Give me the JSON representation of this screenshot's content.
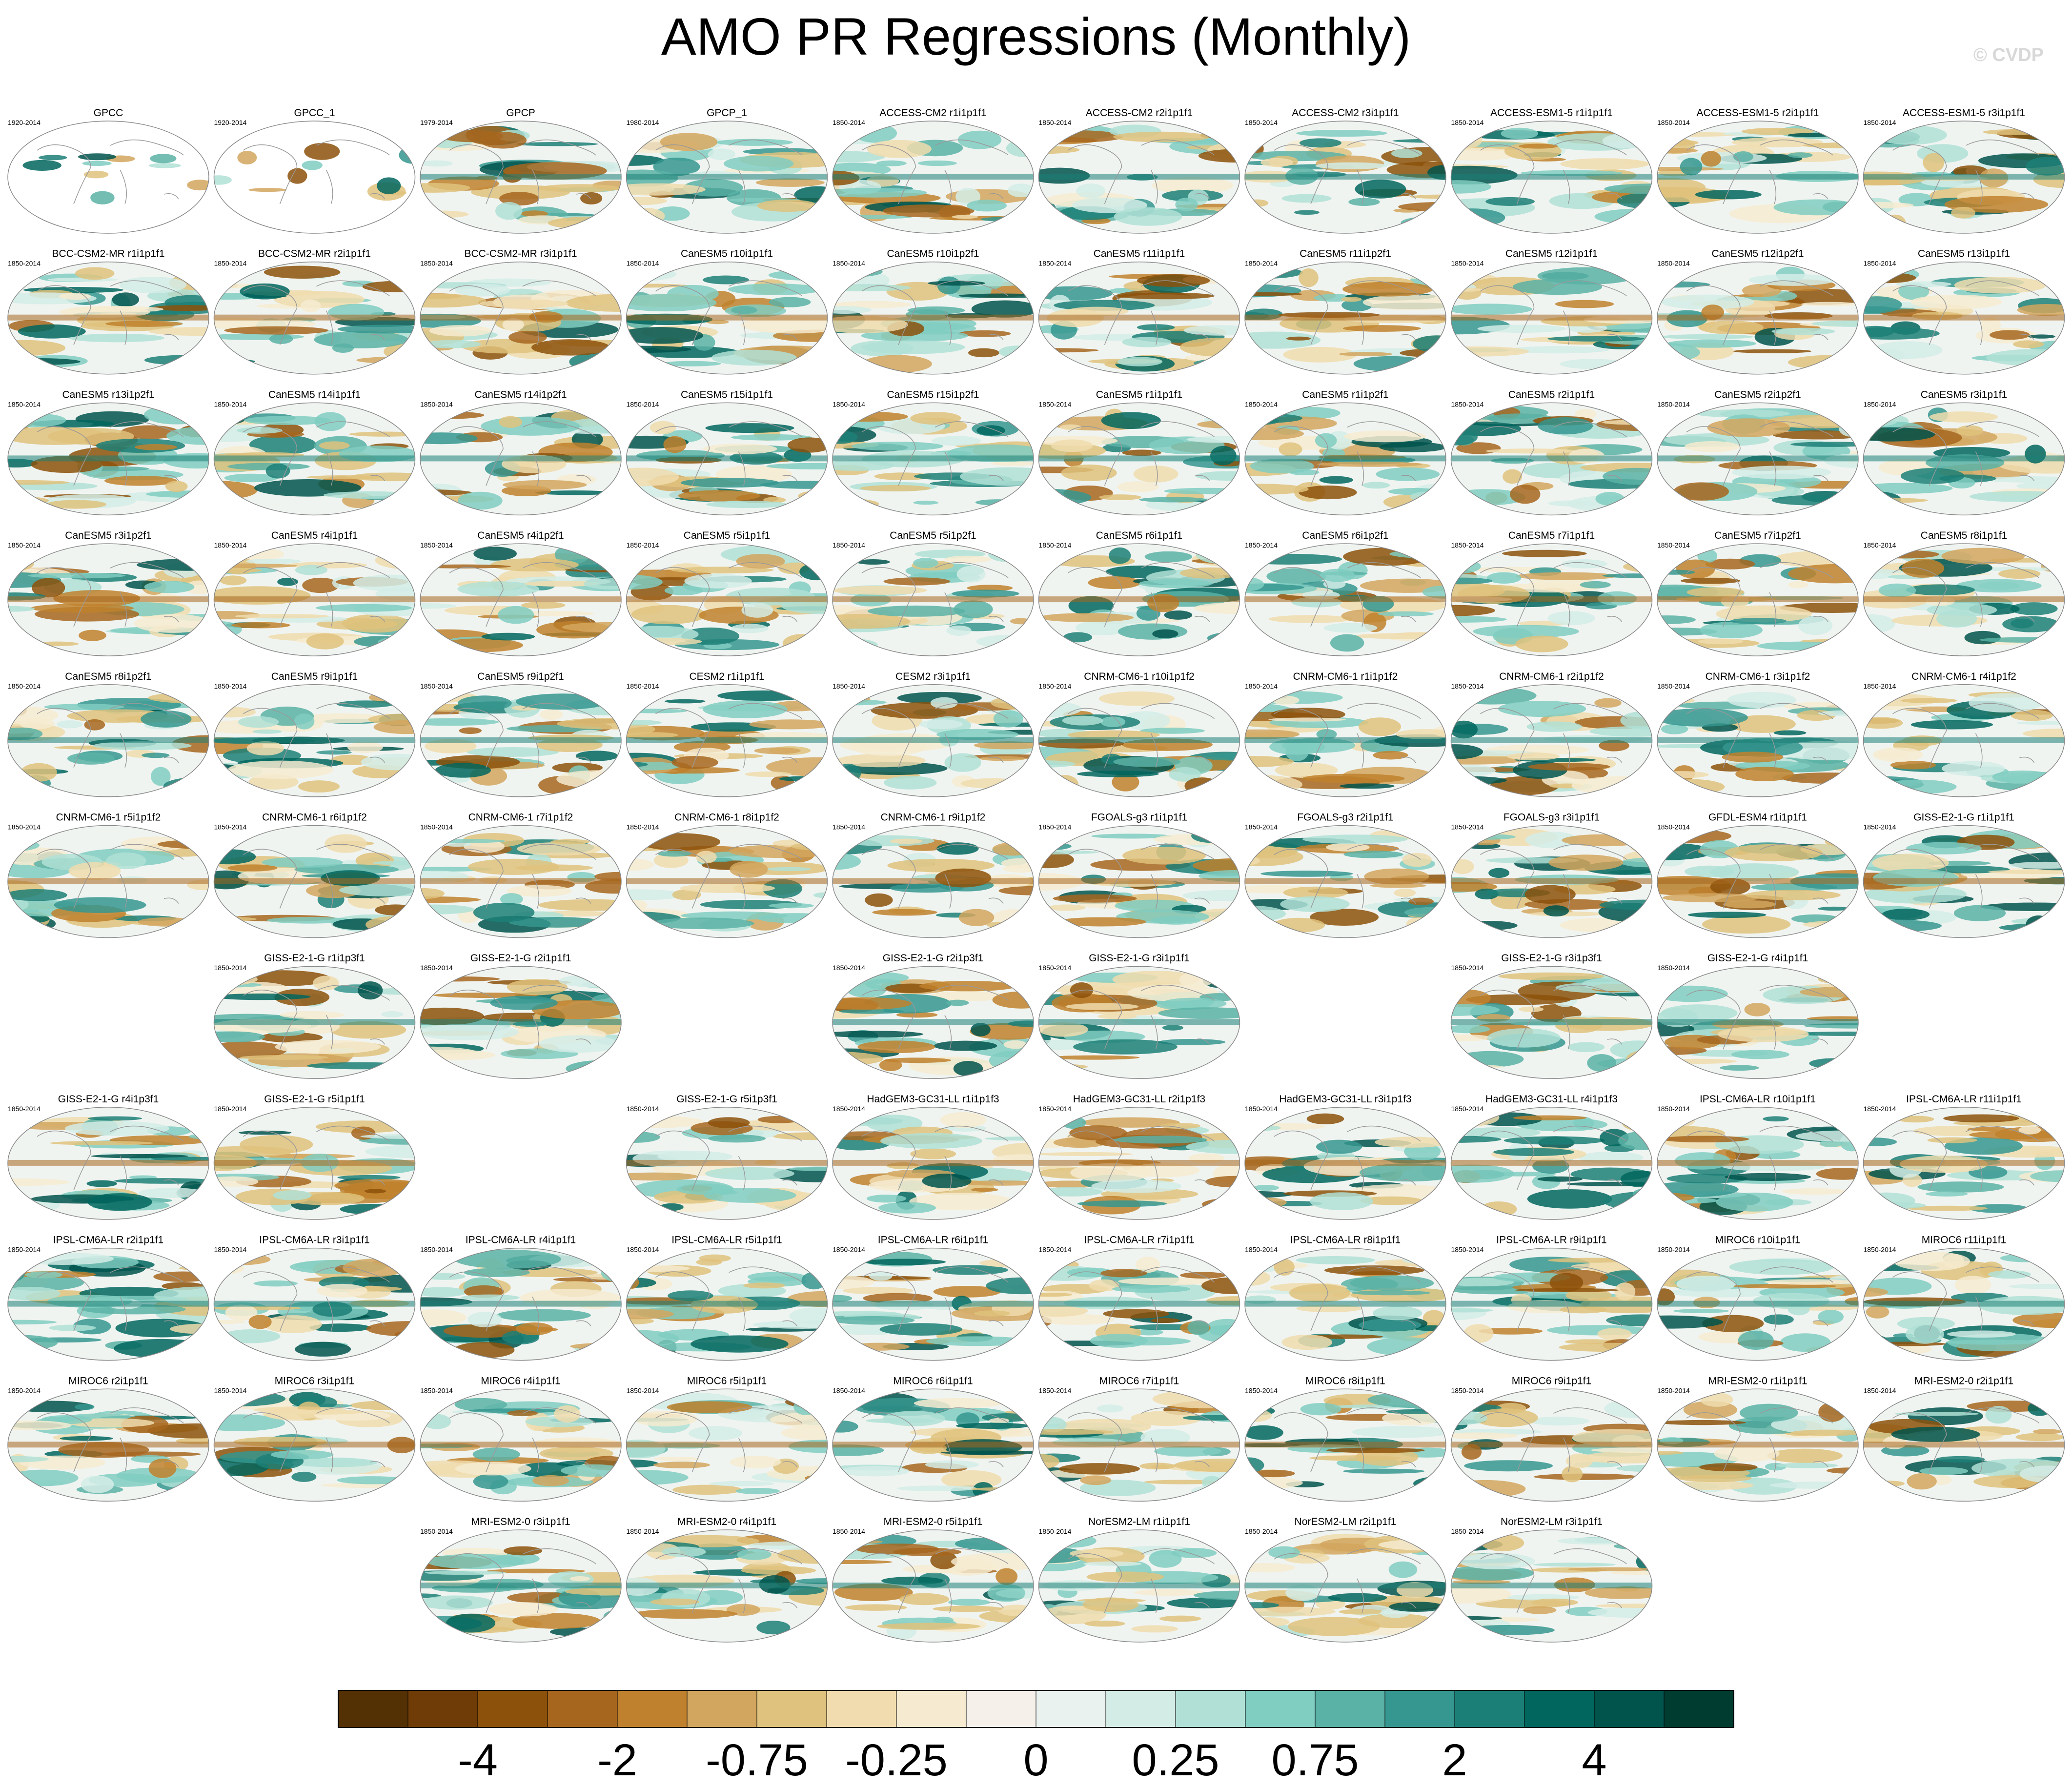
{
  "title": "AMO PR Regressions (Monthly)",
  "watermark": "© CVDP",
  "panels": [
    [
      {
        "title": "GPCC",
        "years": "1920-2014"
      },
      {
        "title": "GPCC_1",
        "years": "1920-2014"
      },
      {
        "title": "GPCP",
        "years": "1979-2014"
      },
      {
        "title": "GPCP_1",
        "years": "1980-2014"
      },
      {
        "title": "ACCESS-CM2 r1i1p1f1",
        "years": "1850-2014"
      },
      {
        "title": "ACCESS-CM2 r2i1p1f1",
        "years": "1850-2014"
      },
      {
        "title": "ACCESS-CM2 r3i1p1f1",
        "years": "1850-2014"
      },
      {
        "title": "ACCESS-ESM1-5 r1i1p1f1",
        "years": "1850-2014"
      },
      {
        "title": "ACCESS-ESM1-5 r2i1p1f1",
        "years": "1850-2014"
      },
      {
        "title": "ACCESS-ESM1-5 r3i1p1f1",
        "years": "1850-2014"
      }
    ],
    [
      {
        "title": "BCC-CSM2-MR r1i1p1f1",
        "years": "1850-2014"
      },
      {
        "title": "BCC-CSM2-MR r2i1p1f1",
        "years": "1850-2014"
      },
      {
        "title": "BCC-CSM2-MR r3i1p1f1",
        "years": "1850-2014"
      },
      {
        "title": "CanESM5 r10i1p1f1",
        "years": "1850-2014"
      },
      {
        "title": "CanESM5 r10i1p2f1",
        "years": "1850-2014"
      },
      {
        "title": "CanESM5 r11i1p1f1",
        "years": "1850-2014"
      },
      {
        "title": "CanESM5 r11i1p2f1",
        "years": "1850-2014"
      },
      {
        "title": "CanESM5 r12i1p1f1",
        "years": "1850-2014"
      },
      {
        "title": "CanESM5 r12i1p2f1",
        "years": "1850-2014"
      },
      {
        "title": "CanESM5 r13i1p1f1",
        "years": "1850-2014"
      }
    ],
    [
      {
        "title": "CanESM5 r13i1p2f1",
        "years": "1850-2014"
      },
      {
        "title": "CanESM5 r14i1p1f1",
        "years": "1850-2014"
      },
      {
        "title": "CanESM5 r14i1p2f1",
        "years": "1850-2014"
      },
      {
        "title": "CanESM5 r15i1p1f1",
        "years": "1850-2014"
      },
      {
        "title": "CanESM5 r15i1p2f1",
        "years": "1850-2014"
      },
      {
        "title": "CanESM5 r1i1p1f1",
        "years": "1850-2014"
      },
      {
        "title": "CanESM5 r1i1p2f1",
        "years": "1850-2014"
      },
      {
        "title": "CanESM5 r2i1p1f1",
        "years": "1850-2014"
      },
      {
        "title": "CanESM5 r2i1p2f1",
        "years": "1850-2014"
      },
      {
        "title": "CanESM5 r3i1p1f1",
        "years": "1850-2014"
      }
    ],
    [
      {
        "title": "CanESM5 r3i1p2f1",
        "years": "1850-2014"
      },
      {
        "title": "CanESM5 r4i1p1f1",
        "years": "1850-2014"
      },
      {
        "title": "CanESM5 r4i1p2f1",
        "years": "1850-2014"
      },
      {
        "title": "CanESM5 r5i1p1f1",
        "years": "1850-2014"
      },
      {
        "title": "CanESM5 r5i1p2f1",
        "years": "1850-2014"
      },
      {
        "title": "CanESM5 r6i1p1f1",
        "years": "1850-2014"
      },
      {
        "title": "CanESM5 r6i1p2f1",
        "years": "1850-2014"
      },
      {
        "title": "CanESM5 r7i1p1f1",
        "years": "1850-2014"
      },
      {
        "title": "CanESM5 r7i1p2f1",
        "years": "1850-2014"
      },
      {
        "title": "CanESM5 r8i1p1f1",
        "years": "1850-2014"
      }
    ],
    [
      {
        "title": "CanESM5 r8i1p2f1",
        "years": "1850-2014"
      },
      {
        "title": "CanESM5 r9i1p1f1",
        "years": "1850-2014"
      },
      {
        "title": "CanESM5 r9i1p2f1",
        "years": "1850-2014"
      },
      {
        "title": "CESM2 r1i1p1f1",
        "years": "1850-2014"
      },
      {
        "title": "CESM2 r3i1p1f1",
        "years": "1850-2014"
      },
      {
        "title": "CNRM-CM6-1 r10i1p1f2",
        "years": "1850-2014"
      },
      {
        "title": "CNRM-CM6-1 r1i1p1f2",
        "years": "1850-2014"
      },
      {
        "title": "CNRM-CM6-1 r2i1p1f2",
        "years": "1850-2014"
      },
      {
        "title": "CNRM-CM6-1 r3i1p1f2",
        "years": "1850-2014"
      },
      {
        "title": "CNRM-CM6-1 r4i1p1f2",
        "years": "1850-2014"
      }
    ],
    [
      {
        "title": "CNRM-CM6-1 r5i1p1f2",
        "years": "1850-2014"
      },
      {
        "title": "CNRM-CM6-1 r6i1p1f2",
        "years": "1850-2014"
      },
      {
        "title": "CNRM-CM6-1 r7i1p1f2",
        "years": "1850-2014"
      },
      {
        "title": "CNRM-CM6-1 r8i1p1f2",
        "years": "1850-2014"
      },
      {
        "title": "CNRM-CM6-1 r9i1p1f2",
        "years": "1850-2014"
      },
      {
        "title": "FGOALS-g3 r1i1p1f1",
        "years": "1850-2014"
      },
      {
        "title": "FGOALS-g3 r2i1p1f1",
        "years": "1850-2014"
      },
      {
        "title": "FGOALS-g3 r3i1p1f1",
        "years": "1850-2014"
      },
      {
        "title": "GFDL-ESM4 r1i1p1f1",
        "years": "1850-2014"
      },
      {
        "title": "GISS-E2-1-G r1i1p1f1",
        "years": "1850-2014"
      }
    ],
    [
      null,
      {
        "title": "GISS-E2-1-G r1i1p3f1",
        "years": "1850-2014"
      },
      {
        "title": "GISS-E2-1-G r2i1p1f1",
        "years": "1850-2014"
      },
      null,
      {
        "title": "GISS-E2-1-G r2i1p3f1",
        "years": "1850-2014"
      },
      {
        "title": "GISS-E2-1-G r3i1p1f1",
        "years": "1850-2014"
      },
      null,
      {
        "title": "GISS-E2-1-G r3i1p3f1",
        "years": "1850-2014"
      },
      {
        "title": "GISS-E2-1-G r4i1p1f1",
        "years": "1850-2014"
      },
      null
    ],
    [
      {
        "title": "GISS-E2-1-G r4i1p3f1",
        "years": "1850-2014"
      },
      {
        "title": "GISS-E2-1-G r5i1p1f1",
        "years": "1850-2014"
      },
      null,
      {
        "title": "GISS-E2-1-G r5i1p3f1",
        "years": "1850-2014"
      },
      {
        "title": "HadGEM3-GC31-LL r1i1p1f3",
        "years": "1850-2014"
      },
      {
        "title": "HadGEM3-GC31-LL r2i1p1f3",
        "years": "1850-2014"
      },
      {
        "title": "HadGEM3-GC31-LL r3i1p1f3",
        "years": "1850-2014"
      },
      {
        "title": "HadGEM3-GC31-LL r4i1p1f3",
        "years": "1850-2014"
      },
      {
        "title": "IPSL-CM6A-LR r10i1p1f1",
        "years": "1850-2014"
      },
      {
        "title": "IPSL-CM6A-LR r11i1p1f1",
        "years": "1850-2014"
      }
    ],
    [
      {
        "title": "IPSL-CM6A-LR r2i1p1f1",
        "years": "1850-2014"
      },
      {
        "title": "IPSL-CM6A-LR r3i1p1f1",
        "years": "1850-2014"
      },
      {
        "title": "IPSL-CM6A-LR r4i1p1f1",
        "years": "1850-2014"
      },
      {
        "title": "IPSL-CM6A-LR r5i1p1f1",
        "years": "1850-2014"
      },
      {
        "title": "IPSL-CM6A-LR r6i1p1f1",
        "years": "1850-2014"
      },
      {
        "title": "IPSL-CM6A-LR r7i1p1f1",
        "years": "1850-2014"
      },
      {
        "title": "IPSL-CM6A-LR r8i1p1f1",
        "years": "1850-2014"
      },
      {
        "title": "IPSL-CM6A-LR r9i1p1f1",
        "years": "1850-2014"
      },
      {
        "title": "MIROC6 r10i1p1f1",
        "years": "1850-2014"
      },
      {
        "title": "MIROC6 r11i1p1f1",
        "years": "1850-2014"
      }
    ],
    [
      {
        "title": "MIROC6 r2i1p1f1",
        "years": "1850-2014"
      },
      {
        "title": "MIROC6 r3i1p1f1",
        "years": "1850-2014"
      },
      {
        "title": "MIROC6 r4i1p1f1",
        "years": "1850-2014"
      },
      {
        "title": "MIROC6 r5i1p1f1",
        "years": "1850-2014"
      },
      {
        "title": "MIROC6 r6i1p1f1",
        "years": "1850-2014"
      },
      {
        "title": "MIROC6 r7i1p1f1",
        "years": "1850-2014"
      },
      {
        "title": "MIROC6 r8i1p1f1",
        "years": "1850-2014"
      },
      {
        "title": "MIROC6 r9i1p1f1",
        "years": "1850-2014"
      },
      {
        "title": "MRI-ESM2-0 r1i1p1f1",
        "years": "1850-2014"
      },
      {
        "title": "MRI-ESM2-0 r2i1p1f1",
        "years": "1850-2014"
      }
    ],
    [
      null,
      null,
      {
        "title": "MRI-ESM2-0 r3i1p1f1",
        "years": "1850-2014"
      },
      {
        "title": "MRI-ESM2-0 r4i1p1f1",
        "years": "1850-2014"
      },
      {
        "title": "MRI-ESM2-0 r5i1p1f1",
        "years": "1850-2014"
      },
      {
        "title": "NorESM2-LM r1i1p1f1",
        "years": "1850-2014"
      },
      {
        "title": "NorESM2-LM r2i1p1f1",
        "years": "1850-2014"
      },
      {
        "title": "NorESM2-LM r3i1p1f1",
        "years": "1850-2014"
      },
      null,
      null
    ]
  ],
  "colorbar": {
    "colors": [
      "#543005",
      "#6f3c07",
      "#8c510a",
      "#a6661e",
      "#bf812d",
      "#d2a65e",
      "#dfc27d",
      "#f0dcae",
      "#f6ebd0",
      "#f5f0ea",
      "#eaf2f0",
      "#d4ece6",
      "#b0e0d6",
      "#80cdc1",
      "#5ab2a6",
      "#35978f",
      "#1c7f77",
      "#01665e",
      "#00544c",
      "#003c30"
    ],
    "ticks": [
      -4,
      -2,
      -0.75,
      -0.25,
      0,
      0.25,
      0.75,
      2,
      4
    ]
  }
}
